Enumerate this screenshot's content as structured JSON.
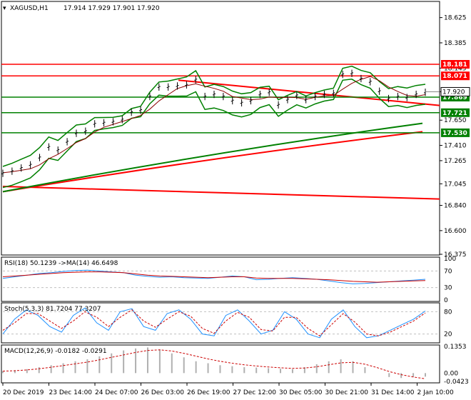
{
  "header": {
    "symbol": "XAGUSD,H1",
    "ohlc": "17.914 17.929 17.901 17.920"
  },
  "panels": {
    "rsi_label": "RSI(18) 50.1239 ->MA(14) 46.6498",
    "stoch_label": "Stoch(5,3,3) 81.7204 77.3207",
    "macd_label": "MACD(12,26,9) -0.0182 -0.0291"
  },
  "colors": {
    "red": "#ff0000",
    "green": "#008000",
    "candle": "#000000",
    "rsi": "#1e90ff",
    "signal": "#cc0000",
    "grid": "#c0c0c0"
  },
  "chart_data": [
    {
      "type": "line",
      "title": "XAGUSD,H1",
      "ylim": [
        16.375,
        18.765
      ],
      "x_ticks": [
        "20 Dec 2019",
        "23 Dec 14:00",
        "24 Dec 07:00",
        "26 Dec 03:00",
        "26 Dec 19:00",
        "27 Dec 12:00",
        "30 Dec 05:00",
        "30 Dec 21:00",
        "31 Dec 14:00",
        "2 Jan 10:00"
      ],
      "y_ticks": [
        "18.625",
        "18.385",
        "18.145",
        "17.920",
        "17.650",
        "17.410",
        "17.265",
        "17.045",
        "16.840",
        "16.600",
        "16.375"
      ],
      "price": [
        17.15,
        17.17,
        17.2,
        17.23,
        17.3,
        17.4,
        17.37,
        17.45,
        17.53,
        17.55,
        17.62,
        17.63,
        17.64,
        17.66,
        17.73,
        17.75,
        17.88,
        17.97,
        17.97,
        17.98,
        17.99,
        18.04,
        17.88,
        17.9,
        17.88,
        17.84,
        17.82,
        17.84,
        17.9,
        17.92,
        17.8,
        17.85,
        17.89,
        17.85,
        17.88,
        17.9,
        17.91,
        18.09,
        18.1,
        18.05,
        18.02,
        17.93,
        17.86,
        17.88,
        17.87,
        17.9,
        17.92
      ],
      "levels": [
        {
          "value": "18.181",
          "color": "red"
        },
        {
          "value": "18.071",
          "color": "red"
        },
        {
          "value": "17.869",
          "color": "green"
        },
        {
          "value": "17.721",
          "color": "green"
        },
        {
          "value": "17.530",
          "color": "green"
        }
      ],
      "current_price": "17.920"
    },
    {
      "type": "line",
      "title": "RSI(18) 50.1239 ->MA(14) 46.6498",
      "ylim": [
        0,
        100
      ],
      "y_ticks": [
        "100",
        "70",
        "30",
        "0"
      ],
      "series": [
        {
          "values": [
            52,
            56,
            60,
            64,
            66,
            69,
            71,
            72,
            70,
            68,
            66,
            60,
            57,
            55,
            56,
            54,
            53,
            52,
            55,
            58,
            56,
            49,
            50,
            52,
            54,
            52,
            50,
            46,
            42,
            39,
            40,
            42,
            44,
            46,
            48,
            50
          ]
        },
        {
          "values": [
            56,
            58,
            60,
            62,
            64,
            66,
            67,
            68,
            68,
            67,
            66,
            63,
            60,
            58,
            57,
            56,
            55,
            54,
            55,
            56,
            56,
            53,
            52,
            52,
            52,
            51,
            50,
            49,
            47,
            45,
            44,
            43,
            44,
            45,
            46,
            47
          ]
        }
      ]
    },
    {
      "type": "line",
      "title": "Stoch(5,3,3) 81.7204 77.3207",
      "ylim": [
        0,
        100
      ],
      "y_ticks": [
        "80",
        "20"
      ],
      "series": [
        {
          "values": [
            20,
            60,
            85,
            70,
            40,
            25,
            70,
            90,
            50,
            30,
            80,
            88,
            40,
            30,
            75,
            85,
            60,
            20,
            15,
            70,
            85,
            55,
            20,
            30,
            80,
            60,
            20,
            10,
            60,
            85,
            40,
            10,
            15,
            30,
            45,
            60,
            82
          ]
        },
        {
          "values": [
            30,
            50,
            75,
            75,
            55,
            35,
            55,
            80,
            65,
            40,
            65,
            85,
            55,
            38,
            60,
            80,
            68,
            35,
            22,
            55,
            78,
            65,
            32,
            28,
            65,
            65,
            35,
            15,
            45,
            75,
            52,
            20,
            15,
            25,
            40,
            55,
            77
          ]
        }
      ]
    },
    {
      "type": "bar",
      "title": "MACD(12,26,9) -0.0182 -0.0291",
      "ylim": [
        -0.0423,
        0.1353
      ],
      "y_ticks": [
        "0.1353",
        "0.00",
        "-0.0423"
      ],
      "series": [
        {
          "values": [
            0.01,
            0.015,
            0.02,
            0.03,
            0.04,
            0.05,
            0.06,
            0.07,
            0.085,
            0.1,
            0.115,
            0.125,
            0.13,
            0.12,
            0.1,
            0.08,
            0.06,
            0.05,
            0.04,
            0.035,
            0.03,
            0.028,
            0.025,
            0.022,
            0.02,
            0.03,
            0.045,
            0.06,
            0.07,
            0.06,
            0.03,
            0.0,
            -0.02,
            -0.025,
            -0.02,
            -0.018
          ]
        },
        {
          "values": [
            0.01,
            0.012,
            0.016,
            0.022,
            0.03,
            0.038,
            0.047,
            0.056,
            0.067,
            0.08,
            0.092,
            0.105,
            0.115,
            0.118,
            0.112,
            0.1,
            0.086,
            0.072,
            0.06,
            0.05,
            0.042,
            0.036,
            0.031,
            0.027,
            0.024,
            0.026,
            0.032,
            0.042,
            0.052,
            0.055,
            0.045,
            0.028,
            0.008,
            -0.008,
            -0.02,
            -0.029
          ]
        }
      ]
    }
  ]
}
